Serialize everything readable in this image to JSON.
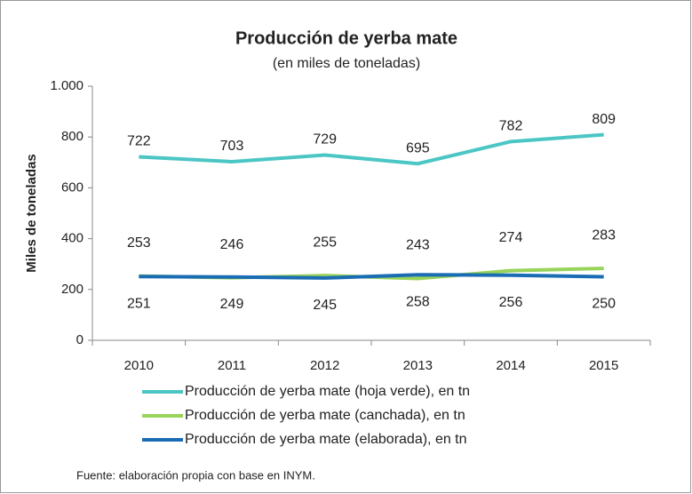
{
  "chart_data": {
    "type": "line",
    "title": "Producción de yerba mate",
    "subtitle": "(en miles de toneladas)",
    "y_label": "Miles de toneladas",
    "categories": [
      "2010",
      "2011",
      "2012",
      "2013",
      "2014",
      "2015"
    ],
    "series": [
      {
        "name": "Producción de yerba mate (hoja verde), en tn",
        "color": "#4bc6c4",
        "values": [
          722,
          703,
          729,
          695,
          782,
          809
        ]
      },
      {
        "name": "Producción de yerba mate (canchada), en tn",
        "color": "#98d35a",
        "values": [
          253,
          246,
          255,
          243,
          274,
          283
        ]
      },
      {
        "name": "Producción de yerba mate (elaborada), en tn",
        "color": "#1a6db5",
        "values": [
          251,
          249,
          245,
          258,
          256,
          250
        ]
      }
    ],
    "ylim": [
      0,
      1000
    ],
    "yticks": [
      0,
      200,
      400,
      600,
      800,
      {
        "value": 1000,
        "label": "1.000"
      }
    ],
    "legend": "bottom",
    "source": "Fuente: elaboración propia con base en INYM."
  }
}
